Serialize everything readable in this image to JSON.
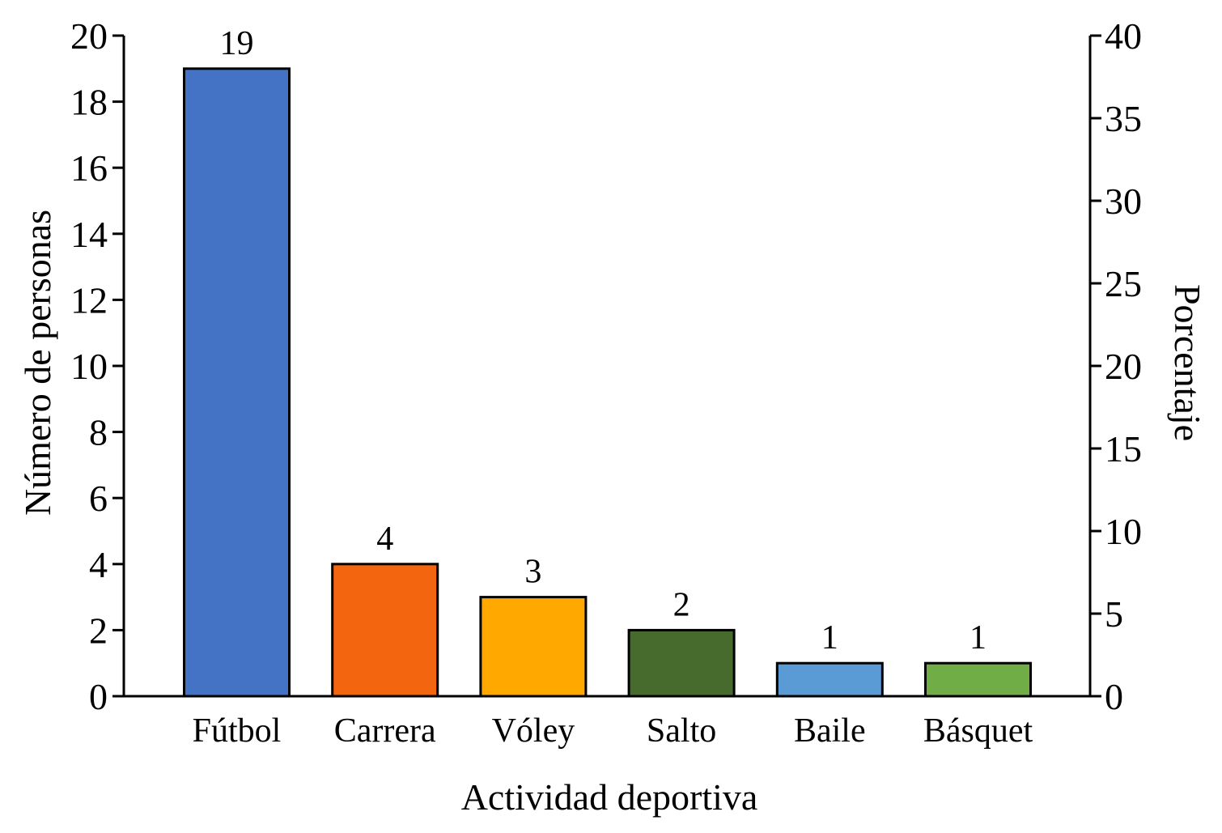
{
  "chart_data": {
    "type": "bar",
    "title": "",
    "xlabel": "Actividad deportiva",
    "ylabel": "Número de personas",
    "y2label": "Porcentaje",
    "categories": [
      "Fútbol",
      "Carrera",
      "Vóley",
      "Salto",
      "Baile",
      "Básquet"
    ],
    "values": [
      19,
      4,
      3,
      2,
      1,
      1
    ],
    "data_labels": [
      "19",
      "4",
      "3",
      "2",
      "1",
      "1"
    ],
    "colors": [
      "#4472c4",
      "#f4650f",
      "#ffa800",
      "#466b2d",
      "#5b9bd5",
      "#70ad47"
    ],
    "ylim": [
      0,
      20
    ],
    "y_ticks": [
      "0",
      "2",
      "4",
      "6",
      "8",
      "10",
      "12",
      "14",
      "16",
      "18",
      "20"
    ],
    "y2lim": [
      0,
      40
    ],
    "y2_ticks": [
      "0",
      "5",
      "10",
      "15",
      "20",
      "25",
      "30",
      "35",
      "40"
    ],
    "grid": false,
    "legend": "none"
  }
}
